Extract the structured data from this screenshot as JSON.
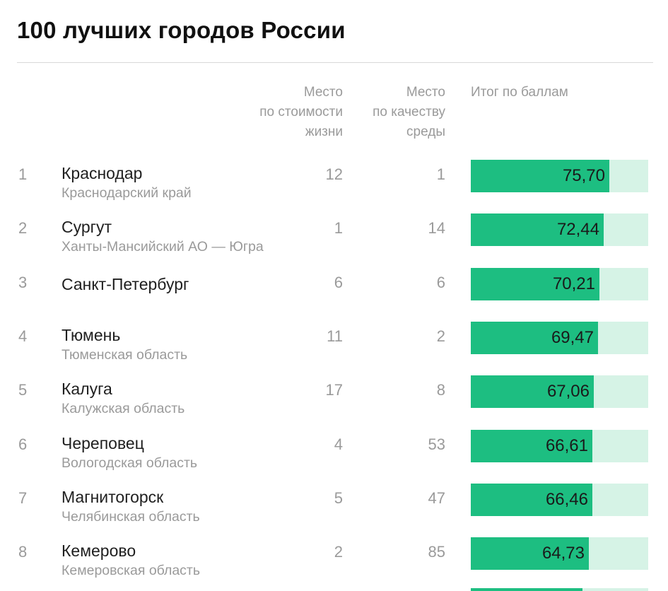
{
  "title": "100 лучших городов России",
  "headers": {
    "cost": "Место\nпо стоимости\nжизни",
    "quality": "Место\nпо качеству\nсреды",
    "score": "Итог по баллам"
  },
  "colors": {
    "bar_fill": "#1dbe81",
    "bar_track": "#d6f3e6"
  },
  "chart_data": {
    "type": "table",
    "title": "100 лучших городов России",
    "columns": [
      "Место по стоимости жизни",
      "Место по качеству среды",
      "Итог по баллам"
    ],
    "score_max": 100,
    "rows": [
      {
        "rank": "1",
        "city": "Краснодар",
        "region": "Краснодарский край",
        "cost": "12",
        "quality": "1",
        "score": 75.7,
        "score_label": "75,70"
      },
      {
        "rank": "2",
        "city": "Сургут",
        "region": "Ханты-Мансийский АО — Югра",
        "cost": "1",
        "quality": "14",
        "score": 72.44,
        "score_label": "72,44"
      },
      {
        "rank": "3",
        "city": "Санкт-Петербург",
        "region": "",
        "cost": "6",
        "quality": "6",
        "score": 70.21,
        "score_label": "70,21"
      },
      {
        "rank": "4",
        "city": "Тюмень",
        "region": "Тюменская область",
        "cost": "11",
        "quality": "2",
        "score": 69.47,
        "score_label": "69,47"
      },
      {
        "rank": "5",
        "city": "Калуга",
        "region": "Калужская область",
        "cost": "17",
        "quality": "8",
        "score": 67.06,
        "score_label": "67,06"
      },
      {
        "rank": "6",
        "city": "Череповец",
        "region": "Вологодская область",
        "cost": "4",
        "quality": "53",
        "score": 66.61,
        "score_label": "66,61"
      },
      {
        "rank": "7",
        "city": "Магнитогорск",
        "region": "Челябинская область",
        "cost": "5",
        "quality": "47",
        "score": 66.46,
        "score_label": "66,46"
      },
      {
        "rank": "8",
        "city": "Кемерово",
        "region": "Кемеровская область",
        "cost": "2",
        "quality": "85",
        "score": 64.73,
        "score_label": "64,73"
      }
    ]
  }
}
